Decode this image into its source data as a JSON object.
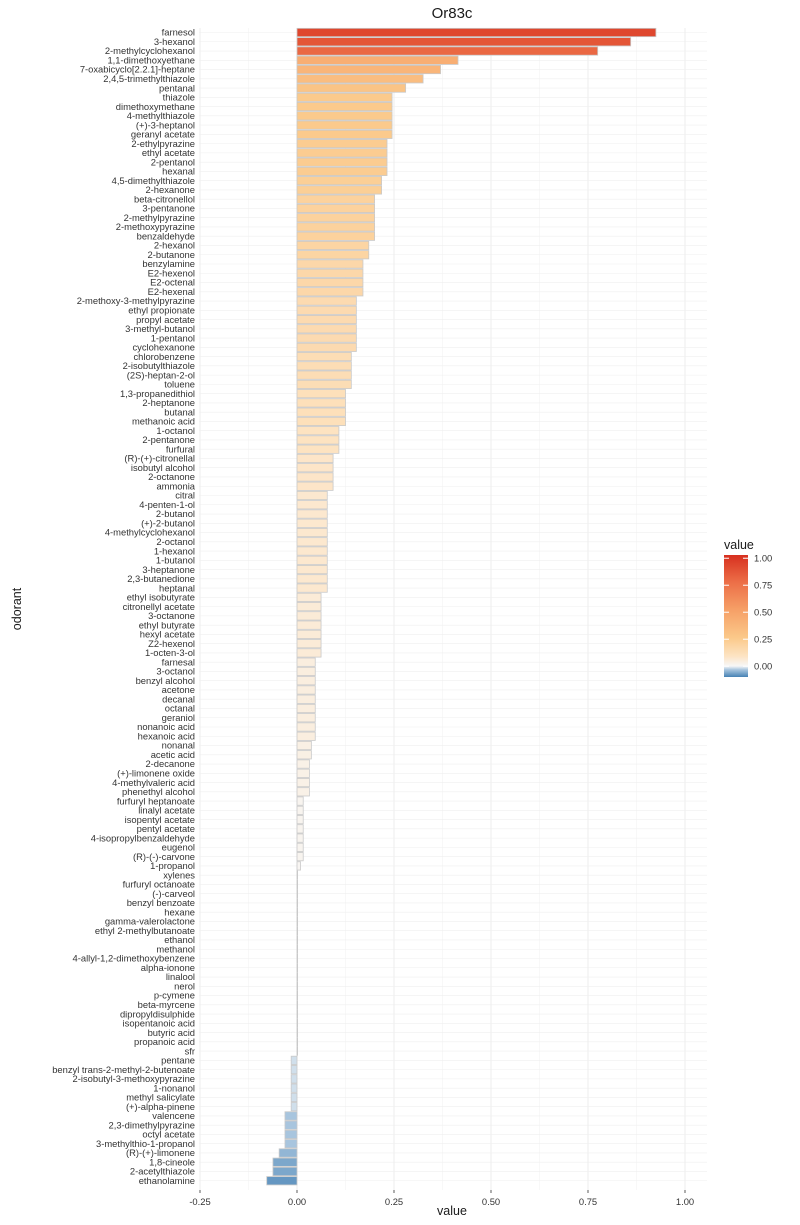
{
  "chart_data": {
    "type": "bar",
    "orientation": "horizontal",
    "title": "Or83c",
    "xlabel": "value",
    "ylabel": "odorant",
    "xlim": [
      -0.25,
      1.05
    ],
    "xticks": [
      -0.25,
      0.0,
      0.25,
      0.5,
      0.75,
      1.0
    ],
    "xtick_labels": [
      "-0.25",
      "0.00",
      "0.25",
      "0.50",
      "0.75",
      "1.00"
    ],
    "grid": true,
    "legend": {
      "title": "value",
      "position": "right",
      "ticks": [
        "1.00",
        "0.75",
        "0.50",
        "0.25",
        "0.00"
      ],
      "tick_values": [
        1.0,
        0.75,
        0.5,
        0.25,
        0.0
      ],
      "range": [
        -0.1,
        1.03
      ]
    },
    "categories": [
      "farnesol",
      "3-hexanol",
      "2-methylcyclohexanol",
      "1,1-dimethoxyethane",
      "7-oxabicyclo[2.2.1]-heptane",
      "2,4,5-trimethylthiazole",
      "pentanal",
      "thiazole",
      "dimethoxymethane",
      "4-methylthiazole",
      "(+)-3-heptanol",
      "geranyl acetate",
      "2-ethylpyrazine",
      "ethyl acetate",
      "2-pentanol",
      "hexanal",
      "4,5-dimethylthiazole",
      "2-hexanone",
      "beta-citronellol",
      "3-pentanone",
      "2-methylpyrazine",
      "2-methoxypyrazine",
      "benzaldehyde",
      "2-hexanol",
      "2-butanone",
      "benzylamine",
      "E2-hexenol",
      "E2-octenal",
      "E2-hexenal",
      "2-methoxy-3-methylpyrazine",
      "ethyl propionate",
      "propyl acetate",
      "3-methyl-butanol",
      "1-pentanol",
      "cyclohexanone",
      "chlorobenzene",
      "2-isobutylthiazole",
      "(2S)-heptan-2-ol",
      "toluene",
      "1,3-propanedithiol",
      "2-heptanone",
      "butanal",
      "methanoic acid",
      "1-octanol",
      "2-pentanone",
      "furfural",
      "(R)-(+)-citronellal",
      "isobutyl alcohol",
      "2-octanone",
      "ammonia",
      "citral",
      "4-penten-1-ol",
      "2-butanol",
      "(+)-2-butanol",
      "4-methylcyclohexanol",
      "2-octanol",
      "1-hexanol",
      "1-butanol",
      "3-heptanone",
      "2,3-butanedione",
      "heptanal",
      "ethyl isobutyrate",
      "citronellyl acetate",
      "3-octanone",
      "ethyl butyrate",
      "hexyl acetate",
      "Z2-hexenol",
      "1-octen-3-ol",
      "farnesal",
      "3-octanol",
      "benzyl alcohol",
      "acetone",
      "decanal",
      "octanal",
      "geraniol",
      "nonanoic acid",
      "hexanoic acid",
      "nonanal",
      "acetic acid",
      "2-decanone",
      "(+)-limonene oxide",
      "4-methylvaleric acid",
      "phenethyl alcohol",
      "furfuryl heptanoate",
      "linalyl acetate",
      "isopentyl acetate",
      "pentyl acetate",
      "4-isopropylbenzaldehyde",
      "eugenol",
      "(R)-(-)-carvone",
      "1-propanol",
      "xylenes",
      "furfuryl octanoate",
      "(-)-carveol",
      "benzyl benzoate",
      "hexane",
      "gamma-valerolactone",
      "ethyl 2-methylbutanoate",
      "ethanol",
      "methanol",
      "4-allyl-1,2-dimethoxybenzene",
      "alpha-ionone",
      "linalool",
      "nerol",
      "p-cymene",
      "beta-myrcene",
      "dipropyldisulphide",
      "isopentanoic acid",
      "butyric acid",
      "propanoic acid",
      "sfr",
      "pentane",
      "benzyl trans-2-methyl-2-butenoate",
      "2-isobutyl-3-methoxypyrazine",
      "1-nonanol",
      "methyl salicylate",
      "(+)-alpha-pinene",
      "valencene",
      "2,3-dimethylpyrazine",
      "octyl acetate",
      "3-methylthio-1-propanol",
      "(R)-(+)-limonene",
      "1,8-cineole",
      "2-acetylthiazole",
      "ethanolamine"
    ],
    "values": [
      0.925,
      0.86,
      0.775,
      0.415,
      0.37,
      0.325,
      0.28,
      0.245,
      0.245,
      0.245,
      0.245,
      0.245,
      0.232,
      0.232,
      0.232,
      0.232,
      0.218,
      0.218,
      0.2,
      0.2,
      0.2,
      0.2,
      0.2,
      0.185,
      0.185,
      0.17,
      0.17,
      0.17,
      0.17,
      0.153,
      0.153,
      0.153,
      0.153,
      0.153,
      0.153,
      0.14,
      0.14,
      0.14,
      0.14,
      0.125,
      0.125,
      0.125,
      0.125,
      0.108,
      0.108,
      0.108,
      0.093,
      0.093,
      0.093,
      0.093,
      0.078,
      0.078,
      0.078,
      0.078,
      0.078,
      0.078,
      0.078,
      0.078,
      0.078,
      0.078,
      0.078,
      0.062,
      0.062,
      0.062,
      0.062,
      0.062,
      0.062,
      0.062,
      0.047,
      0.047,
      0.047,
      0.047,
      0.047,
      0.047,
      0.047,
      0.047,
      0.047,
      0.037,
      0.037,
      0.032,
      0.032,
      0.032,
      0.032,
      0.016,
      0.016,
      0.016,
      0.016,
      0.016,
      0.016,
      0.016,
      0.009,
      0.0,
      0.0,
      0.0,
      0.0,
      0.0,
      0.0,
      0.0,
      0.0,
      0.0,
      0.0,
      0.0,
      0.0,
      0.0,
      0.0,
      0.0,
      0.0,
      0.0,
      0.0,
      0.0,
      0.0,
      -0.015,
      -0.015,
      -0.015,
      -0.015,
      -0.015,
      -0.015,
      -0.031,
      -0.031,
      -0.031,
      -0.031,
      -0.046,
      -0.062,
      -0.062,
      -0.078
    ]
  }
}
